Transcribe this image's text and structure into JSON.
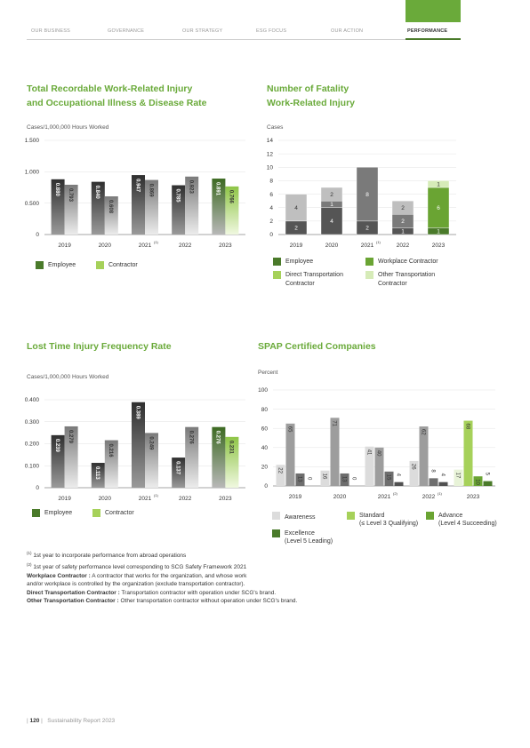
{
  "nav": {
    "items": [
      "OUR BUSINESS",
      "GOVERNANCE",
      "OUR STRATEGY",
      "ESG FOCUS",
      "OUR ACTION",
      "PERFORMANCE"
    ],
    "active": "PERFORMANCE"
  },
  "colors": {
    "accent": "#6aaa3a",
    "employee": "#4a7a2a",
    "contractor": "#a6d15a",
    "dark_grey": "#555555",
    "light_grey": "#bfbfbf"
  },
  "chart_data": [
    {
      "type": "bar",
      "title_lines": [
        "Total Recordable Work-Related Injury",
        "and Occupational Illness & Disease Rate"
      ],
      "ylabel": "Cases/1,000,000 Hours Worked",
      "categories": [
        "2019",
        "2020",
        "2021",
        "2022",
        "2023"
      ],
      "category_sup": [
        "",
        "",
        "(1)",
        "",
        ""
      ],
      "ylim": [
        0,
        1.5
      ],
      "yticks": [
        "0",
        "0.500",
        "1.000",
        "1.500"
      ],
      "ytick_values": [
        0,
        0.5,
        1.0,
        1.5
      ],
      "series": [
        {
          "name": "Employee",
          "values": [
            0.88,
            0.84,
            0.947,
            0.785,
            0.891
          ],
          "labels": [
            "0.880",
            "0.840",
            "0.947",
            "0.785",
            "0.891"
          ]
        },
        {
          "name": "Contractor",
          "values": [
            0.793,
            0.608,
            0.869,
            0.923,
            0.766
          ],
          "labels": [
            "0.793",
            "0.608",
            "0.869",
            "0.923",
            "0.766"
          ]
        }
      ],
      "legend": [
        "Employee",
        "Contractor"
      ],
      "legend_position": "bottom-left",
      "grid": true
    },
    {
      "type": "bar",
      "stacked": true,
      "title_lines": [
        "Number of Fatality",
        "Work-Related Injury"
      ],
      "ylabel": "Cases",
      "categories": [
        "2019",
        "2020",
        "2021",
        "2022",
        "2023"
      ],
      "category_sup": [
        "",
        "",
        "(1)",
        "",
        ""
      ],
      "ylim": [
        0,
        14
      ],
      "yticks": [
        "0",
        "2",
        "4",
        "6",
        "8",
        "10",
        "12",
        "14"
      ],
      "ytick_values": [
        0,
        2,
        4,
        6,
        8,
        10,
        12,
        14
      ],
      "series": [
        {
          "name": "Employee",
          "values": [
            2,
            4,
            2,
            1,
            1
          ],
          "labels": [
            "2",
            "4",
            "2",
            "1",
            "1"
          ]
        },
        {
          "name": "Workplace Contractor",
          "values": [
            0,
            0,
            0,
            0,
            6
          ],
          "labels": [
            "",
            "",
            "",
            "",
            "6"
          ]
        },
        {
          "name": "Direct Transportation Contractor",
          "values": [
            0,
            1,
            8,
            2,
            0
          ],
          "labels": [
            "",
            "1",
            "8",
            "2",
            ""
          ]
        },
        {
          "name": "Other Transportation Contractor",
          "values": [
            4,
            2,
            0,
            2,
            1
          ],
          "labels": [
            "4",
            "2",
            "",
            "2",
            "1"
          ]
        }
      ],
      "legend": [
        "Employee",
        "Workplace Contractor",
        "Direct Transportation Contractor",
        "Other Transportation Contractor"
      ],
      "legend_position": "bottom",
      "grid": true
    },
    {
      "type": "bar",
      "title_lines": [
        "Lost Time Injury Frequency Rate"
      ],
      "ylabel": "Cases/1,000,000 Hours Worked",
      "categories": [
        "2019",
        "2020",
        "2021",
        "2022",
        "2023"
      ],
      "category_sup": [
        "",
        "",
        "(1)",
        "",
        ""
      ],
      "ylim": [
        0,
        0.4
      ],
      "yticks": [
        "0",
        "0.100",
        "0.200",
        "0.300",
        "0.400"
      ],
      "ytick_values": [
        0,
        0.1,
        0.2,
        0.3,
        0.4
      ],
      "series": [
        {
          "name": "Employee",
          "values": [
            0.239,
            0.113,
            0.389,
            0.137,
            0.276
          ],
          "labels": [
            "0.239",
            "0.113",
            "0.389",
            "0.137",
            "0.276"
          ]
        },
        {
          "name": "Contractor",
          "values": [
            0.279,
            0.216,
            0.249,
            0.276,
            0.231
          ],
          "labels": [
            "0.279",
            "0.216",
            "0.249",
            "0.276",
            "0.231"
          ]
        }
      ],
      "legend": [
        "Employee",
        "Contractor"
      ],
      "legend_position": "bottom-left",
      "grid": true
    },
    {
      "type": "bar",
      "title_lines": [
        "SPAP Certified Companies"
      ],
      "ylabel": "Percent",
      "categories": [
        "2019",
        "2020",
        "2021",
        "2022",
        "2023"
      ],
      "category_sup": [
        "",
        "",
        "(2)",
        "(1)",
        ""
      ],
      "ylim": [
        0,
        100
      ],
      "yticks": [
        "0",
        "20",
        "40",
        "60",
        "80",
        "100"
      ],
      "ytick_values": [
        0,
        20,
        40,
        60,
        80,
        100
      ],
      "series": [
        {
          "name": "Awareness",
          "values": [
            22,
            16,
            41,
            26,
            17
          ],
          "labels": [
            "22",
            "16",
            "41",
            "26",
            "17"
          ]
        },
        {
          "name": "Standard (≤ Level 3 Qualifying)",
          "values": [
            65,
            71,
            40,
            62,
            68
          ],
          "labels": [
            "65",
            "71",
            "40",
            "62",
            "68"
          ]
        },
        {
          "name": "Advance (Level 4 Succeeding)",
          "values": [
            13,
            13,
            15,
            8,
            10
          ],
          "labels": [
            "13",
            "13",
            "15",
            "8",
            "10"
          ]
        },
        {
          "name": "Excellence (Level 5 Leading)",
          "values": [
            0,
            0,
            4,
            4,
            5
          ],
          "labels": [
            "0",
            "0",
            "4",
            "4",
            "5"
          ]
        }
      ],
      "legend": [
        "Awareness",
        "Standard",
        "(≤ Level 3 Qualifying)",
        "Advance",
        "(Level 4 Succeeding)",
        "Excellence",
        "(Level 5 Leading)"
      ],
      "legend_position": "bottom",
      "grid": true
    }
  ],
  "notes": {
    "n1_sup": "(1)",
    "n1_text": "1st year to incorporate performance from abroad operations",
    "n2_sup": "(2)",
    "n2_text": "1st year of safety performance level corresponding to SCG Safety Framework 2021",
    "wc_term": "Workplace Contractor :",
    "wc_text": "A contractor that works for the organization, and whose work",
    "wc_text2": "and/or workplace is controlled by the organization (exclude transportation contractor).",
    "dtc_term": "Direct Transportation Contractor :",
    "dtc_text": "Transportation contractor with operation under SCG's brand.",
    "otc_term": "Other Transportation Contractor :",
    "otc_text": "Other transportation contractor without operation under SCG's brand."
  },
  "footer": {
    "page": "120",
    "report": "Sustainability Report 2023"
  }
}
